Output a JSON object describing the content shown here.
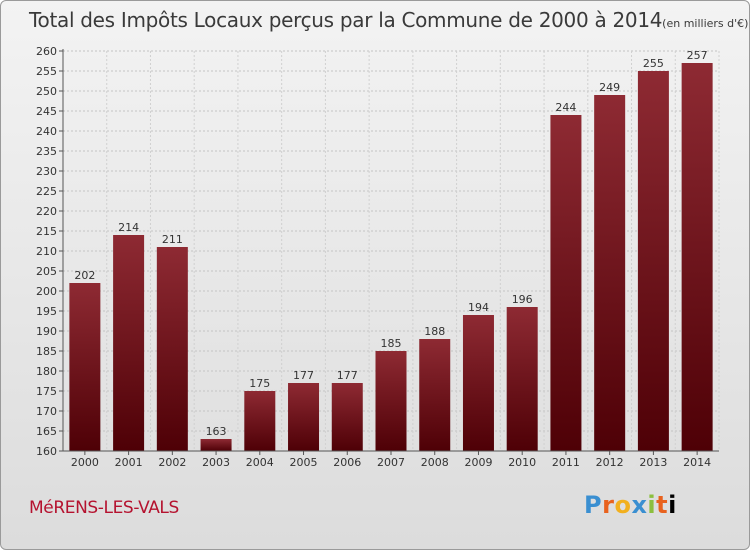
{
  "chart_data": {
    "type": "bar",
    "title": "Total des Impôts Locaux perçus par la Commune de 2000 à 2014",
    "subtitle": "(en milliers d'€)",
    "categories": [
      "2000",
      "2001",
      "2002",
      "2003",
      "2004",
      "2005",
      "2006",
      "2007",
      "2008",
      "2009",
      "2010",
      "2011",
      "2012",
      "2013",
      "2014"
    ],
    "values": [
      202,
      214,
      211,
      163,
      175,
      177,
      177,
      185,
      188,
      194,
      196,
      244,
      249,
      255,
      257
    ],
    "ylim": [
      160,
      260
    ],
    "ytick_step": 5,
    "grid": true,
    "bar_color": "#7a0b12",
    "xlabel": "",
    "ylabel": ""
  },
  "footer": {
    "commune": "MéRENS-LES-VALS",
    "logo_letters": [
      "P",
      "r",
      "o",
      "x",
      "i",
      "t",
      "i"
    ]
  }
}
